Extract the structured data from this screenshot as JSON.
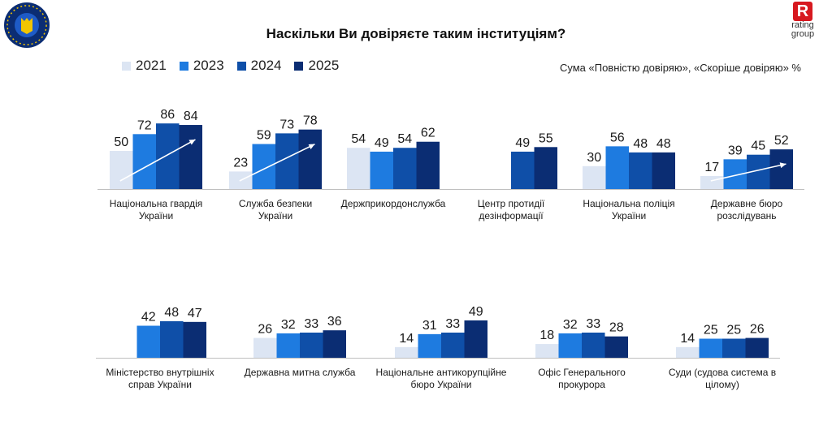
{
  "title": "Наскільки Ви довіряєте таким інституціям?",
  "subtitle": "Сума «Повністю довіряю», «Скоріше довіряю» %",
  "brand": {
    "name_top": "rating",
    "name_bottom": "group",
    "mark": "R",
    "mark_color": "#d71920"
  },
  "left_logo": {
    "icon": "eu-ukraine-emblem"
  },
  "colors": {
    "2021": "#dce5f3",
    "2023": "#1e7be0",
    "2024": "#0f4fa8",
    "2025": "#0b2d73",
    "arrow": "#ffffff"
  },
  "legend": [
    {
      "label": "2021",
      "key": "2021"
    },
    {
      "label": "2023",
      "key": "2023"
    },
    {
      "label": "2024",
      "key": "2024"
    },
    {
      "label": "2025",
      "key": "2025"
    }
  ],
  "chart_data": {
    "type": "bar",
    "series_names": [
      "2021",
      "2023",
      "2024",
      "2025"
    ],
    "ylim": [
      0,
      100
    ],
    "grid": false,
    "legend_position": "top-left",
    "rows": [
      {
        "groups": [
          {
            "category": [
              "Національна гвардія",
              "України"
            ],
            "values": [
              50,
              72,
              86,
              84
            ],
            "trend_arrow": true
          },
          {
            "category": [
              "Служба безпеки",
              "України"
            ],
            "values": [
              23,
              59,
              73,
              78
            ],
            "trend_arrow": true
          },
          {
            "category": [
              "Держприкордонслужба"
            ],
            "values": [
              54,
              49,
              54,
              62
            ],
            "trend_arrow": false
          },
          {
            "category": [
              "Центр протидії",
              "дезінформації"
            ],
            "values": [
              null,
              null,
              49,
              55
            ],
            "trend_arrow": false
          },
          {
            "category": [
              "Національна поліція",
              "України"
            ],
            "values": [
              30,
              56,
              48,
              48
            ],
            "trend_arrow": false
          },
          {
            "category": [
              "Державне бюро",
              "розслідувань"
            ],
            "values": [
              17,
              39,
              45,
              52
            ],
            "trend_arrow": true
          }
        ]
      },
      {
        "groups": [
          {
            "category": [
              "Міністерство внутрішніх",
              "справ України"
            ],
            "values": [
              null,
              42,
              48,
              47
            ],
            "trend_arrow": false
          },
          {
            "category": [
              "Державна митна служба"
            ],
            "values": [
              26,
              32,
              33,
              36
            ],
            "trend_arrow": false
          },
          {
            "category": [
              "Національне антикорупційне",
              "бюро України"
            ],
            "values": [
              14,
              31,
              33,
              49
            ],
            "trend_arrow": false
          },
          {
            "category": [
              "Офіс Генерального",
              "прокурора"
            ],
            "values": [
              18,
              32,
              33,
              28
            ],
            "trend_arrow": false
          },
          {
            "category": [
              "Суди (судова система в",
              "цілому)"
            ],
            "values": [
              14,
              25,
              25,
              26
            ],
            "trend_arrow": false
          }
        ]
      }
    ]
  }
}
